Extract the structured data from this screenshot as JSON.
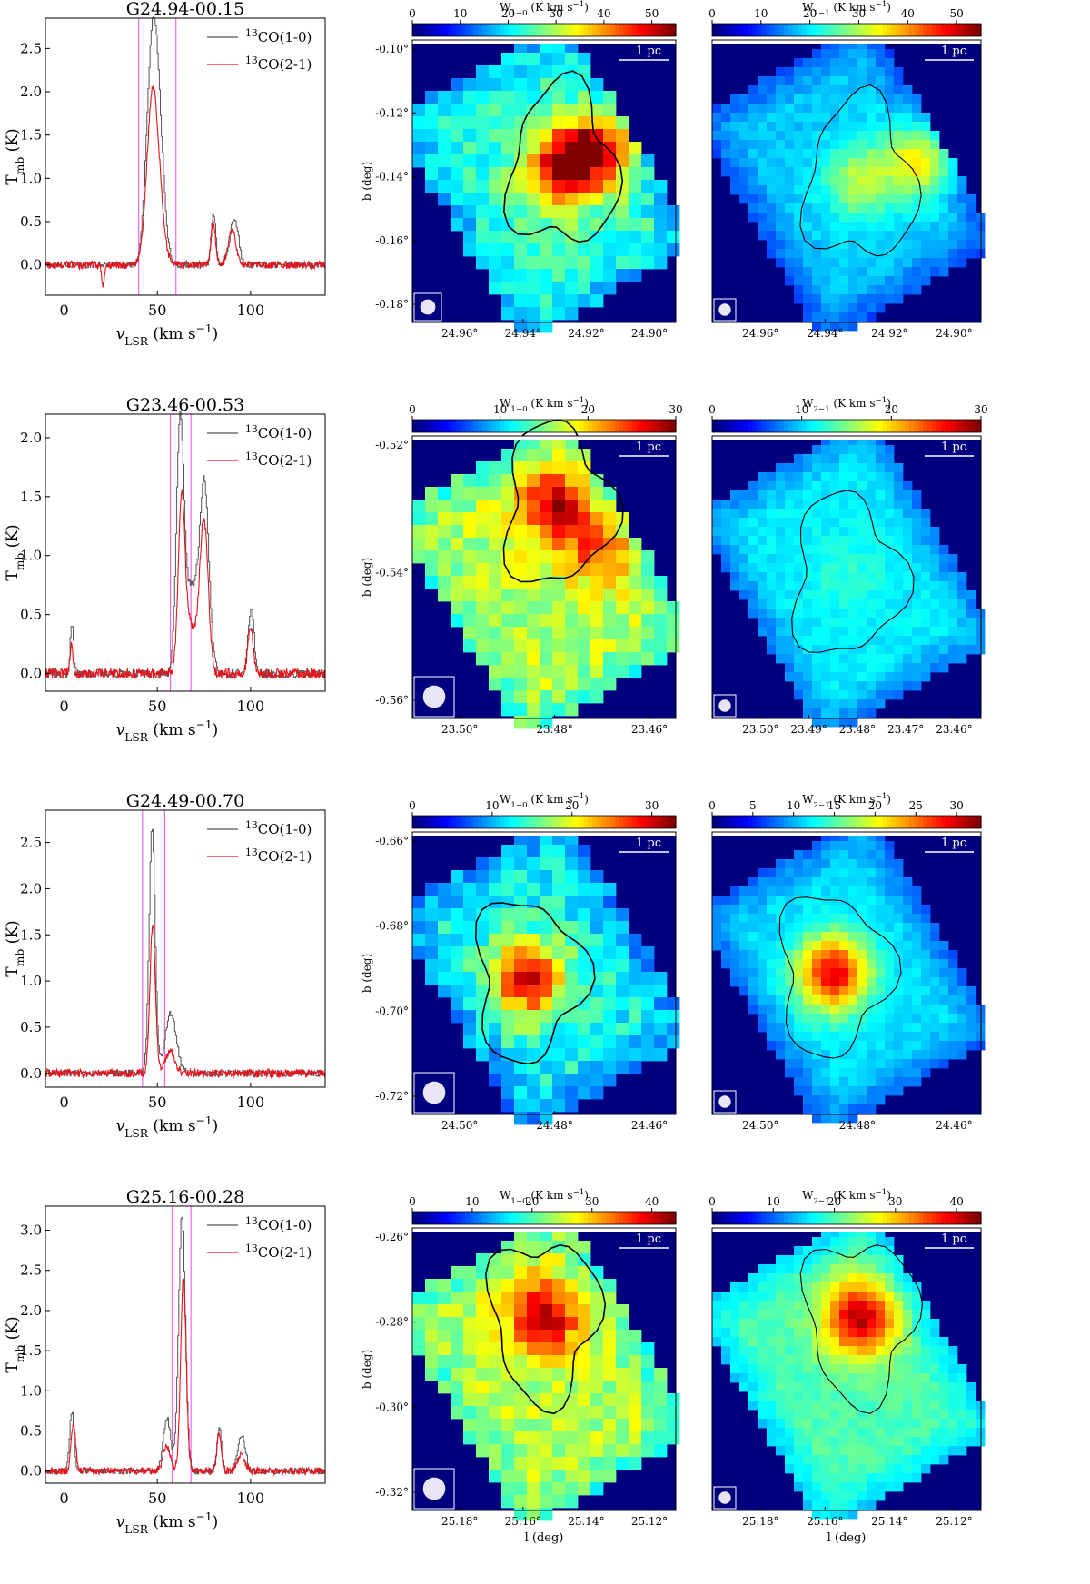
{
  "colors": {
    "gray_spectrum": "#555555",
    "red_spectrum": "#e8101a",
    "vline": "#ee66ee",
    "map_bg": "#00007f",
    "contour": "#000000"
  },
  "chart_data": [
    {
      "type": "line",
      "region": "G24.94-00.15",
      "title": "G24.94-00.15",
      "xlabel": "v_LSR (km s^-1)",
      "ylabel": "T_mb (K)",
      "xlim": [
        -10,
        140
      ],
      "ylim": [
        -0.35,
        2.85
      ],
      "xticks": [
        0,
        50,
        100
      ],
      "yticks": [
        0.0,
        0.5,
        1.0,
        1.5,
        2.0,
        2.5
      ],
      "vlines": [
        40,
        60
      ],
      "series": [
        {
          "name": "13CO(1-0)",
          "color": "gray",
          "peaks": [
            [
              47.5,
              2.75,
              3.2
            ],
            [
              52,
              0.55,
              2.5
            ],
            [
              80,
              0.6,
              1.2
            ],
            [
              91,
              0.55,
              2.2
            ]
          ]
        },
        {
          "name": "13CO(2-1)",
          "color": "red",
          "peaks": [
            [
              47.5,
              2.0,
              3.0
            ],
            [
              52,
              0.3,
              2.5
            ],
            [
              80,
              0.5,
              1.2
            ],
            [
              90,
              0.4,
              2.0
            ],
            [
              21,
              -0.25,
              0.7
            ]
          ]
        }
      ],
      "maps": [
        {
          "name": "W1-0 map",
          "cbar_label": "W1-0 (K km s^-1)",
          "cbar_ticks": [
            0,
            10,
            20,
            30,
            40,
            50
          ],
          "cbar_max": 55,
          "y_label": "b (deg)",
          "y_ticks": [
            "-0.10°",
            "-0.12°",
            "-0.14°",
            "-0.16°",
            "-0.18°"
          ],
          "x_ticks": [
            "24.96°",
            "24.94°",
            "24.92°",
            "24.90°"
          ],
          "x_label": "",
          "scale_label": "1 pc",
          "mean_level": 0.42,
          "peaks": [
            [
              0.57,
              0.45,
              0.95
            ],
            [
              0.72,
              0.38,
              0.9
            ]
          ]
        },
        {
          "name": "W2-1 map",
          "cbar_label": "W2-1 (K km s^-1)",
          "cbar_ticks": [
            0,
            10,
            20,
            30,
            40,
            50
          ],
          "cbar_max": 55,
          "y_label": "",
          "y_ticks": [],
          "x_ticks": [
            "24.96°",
            "24.94°",
            "24.92°",
            "24.90°"
          ],
          "x_label": "",
          "scale_label": "1 pc",
          "mean_level": 0.32,
          "peaks": [
            [
              0.55,
              0.5,
              0.55
            ],
            [
              0.78,
              0.42,
              0.65
            ]
          ]
        }
      ]
    },
    {
      "type": "line",
      "region": "G23.46-00.53",
      "title": "G23.46-00.53",
      "xlabel": "v_LSR (km s^-1)",
      "ylabel": "T_mb (K)",
      "xlim": [
        -10,
        140
      ],
      "ylim": [
        -0.15,
        2.2
      ],
      "xticks": [
        0,
        50,
        100
      ],
      "yticks": [
        0.0,
        0.5,
        1.0,
        1.5,
        2.0
      ],
      "vlines": [
        57,
        68
      ],
      "series": [
        {
          "name": "13CO(1-0)",
          "color": "gray",
          "peaks": [
            [
              62,
              2.05,
              2.0
            ],
            [
              75,
              1.55,
              2.5
            ],
            [
              68,
              0.7,
              3.5
            ],
            [
              100,
              0.55,
              1.6
            ],
            [
              4,
              0.45,
              0.8
            ]
          ]
        },
        {
          "name": "13CO(2-1)",
          "color": "red",
          "peaks": [
            [
              63,
              1.45,
              1.8
            ],
            [
              75,
              1.3,
              2.2
            ],
            [
              68,
              0.4,
              3.0
            ],
            [
              100,
              0.4,
              1.4
            ],
            [
              4,
              0.25,
              0.8
            ]
          ]
        }
      ],
      "maps": [
        {
          "name": "W1-0 map",
          "cbar_label": "W1-0 (K km s^-1)",
          "cbar_ticks": [
            0,
            10,
            20,
            30
          ],
          "cbar_max": 30,
          "y_label": "b (deg)",
          "y_ticks": [
            "-0.52°",
            "-0.54°",
            "-0.56°"
          ],
          "x_ticks": [
            "23.50°",
            "23.48°",
            "23.46°"
          ],
          "x_label": "",
          "scale_label": "1 pc",
          "mean_level": 0.55,
          "peaks": [
            [
              0.55,
              0.25,
              0.95
            ],
            [
              0.72,
              0.4,
              0.8
            ]
          ]
        },
        {
          "name": "W2-1 map",
          "cbar_label": "W2-1 (K km s^-1)",
          "cbar_ticks": [
            0,
            10,
            20,
            30
          ],
          "cbar_max": 30,
          "y_label": "",
          "y_ticks": [],
          "x_ticks": [
            "23.50°",
            "23.49°",
            "23.48°",
            "23.47°",
            "23.46°"
          ],
          "x_label": "",
          "scale_label": "1 pc",
          "mean_level": 0.36,
          "peaks": [
            [
              0.5,
              0.5,
              0.42
            ]
          ]
        }
      ]
    },
    {
      "type": "line",
      "region": "G24.49-00.70",
      "title": "G24.49-00.70",
      "xlabel": "v_LSR (km s^-1)",
      "ylabel": "T_mb (K)",
      "xlim": [
        -10,
        140
      ],
      "ylim": [
        -0.15,
        2.85
      ],
      "xticks": [
        0,
        50,
        100
      ],
      "yticks": [
        0.0,
        0.5,
        1.0,
        1.5,
        2.0,
        2.5
      ],
      "vlines": [
        42,
        54
      ],
      "series": [
        {
          "name": "13CO(1-0)",
          "color": "gray",
          "peaks": [
            [
              47,
              2.65,
              1.6
            ],
            [
              57,
              0.65,
              3.0
            ]
          ]
        },
        {
          "name": "13CO(2-1)",
          "color": "red",
          "peaks": [
            [
              47.5,
              1.6,
              1.5
            ],
            [
              57,
              0.25,
              2.5
            ]
          ]
        }
      ],
      "maps": [
        {
          "name": "W1-0 map",
          "cbar_label": "W1-0 (K km s^-1)",
          "cbar_ticks": [
            0,
            10,
            20,
            30
          ],
          "cbar_max": 33,
          "y_label": "b (deg)",
          "y_ticks": [
            "-0.66°",
            "-0.68°",
            "-0.70°",
            "-0.72°"
          ],
          "x_ticks": [
            "24.50°",
            "24.48°",
            "24.46°"
          ],
          "x_label": "",
          "scale_label": "1 pc",
          "mean_level": 0.38,
          "peaks": [
            [
              0.44,
              0.52,
              0.95
            ]
          ]
        },
        {
          "name": "W2-1 map",
          "cbar_label": "W2-1 (K km s^-1)",
          "cbar_ticks": [
            0,
            5,
            10,
            15,
            20,
            25,
            30
          ],
          "cbar_max": 33,
          "y_label": "",
          "y_ticks": [],
          "x_ticks": [
            "24.50°",
            "24.48°",
            "24.46°"
          ],
          "x_label": "",
          "scale_label": "1 pc",
          "mean_level": 0.34,
          "peaks": [
            [
              0.45,
              0.5,
              0.9
            ]
          ]
        }
      ]
    },
    {
      "type": "line",
      "region": "G25.16-00.28",
      "title": "G25.16-00.28",
      "xlabel": "v_LSR (km s^-1)",
      "ylabel": "T_mb (K)",
      "xlim": [
        -10,
        140
      ],
      "ylim": [
        -0.15,
        3.3
      ],
      "xticks": [
        0,
        50,
        100
      ],
      "yticks": [
        0.0,
        0.5,
        1.0,
        1.5,
        2.0,
        2.5,
        3.0
      ],
      "vlines": [
        58,
        68
      ],
      "series": [
        {
          "name": "13CO(1-0)",
          "color": "gray",
          "peaks": [
            [
              63,
              3.2,
              1.8
            ],
            [
              55,
              0.65,
              2.0
            ],
            [
              4,
              0.75,
              1.2
            ],
            [
              83,
              0.55,
              1.2
            ],
            [
              95,
              0.45,
              2.0
            ]
          ]
        },
        {
          "name": "13CO(2-1)",
          "color": "red",
          "peaks": [
            [
              64,
              2.4,
              1.5
            ],
            [
              55,
              0.3,
              2.0
            ],
            [
              5,
              0.6,
              1.2
            ],
            [
              83,
              0.45,
              1.2
            ],
            [
              95,
              0.2,
              2.0
            ]
          ]
        }
      ],
      "maps": [
        {
          "name": "W1-0 map",
          "cbar_label": "W1-0 (K km s^-1)",
          "cbar_ticks": [
            0,
            10,
            20,
            30,
            40
          ],
          "cbar_max": 44,
          "y_label": "b (deg)",
          "y_ticks": [
            "-0.26°",
            "-0.28°",
            "-0.30°",
            "-0.32°"
          ],
          "x_ticks": [
            "25.18°",
            "25.16°",
            "25.14°",
            "25.12°"
          ],
          "x_label": "l (deg)",
          "scale_label": "1 pc",
          "mean_level": 0.55,
          "peaks": [
            [
              0.5,
              0.32,
              0.95
            ]
          ]
        },
        {
          "name": "W2-1 map",
          "cbar_label": "W2-1 (K km s^-1)",
          "cbar_ticks": [
            0,
            10,
            20,
            30,
            40
          ],
          "cbar_max": 44,
          "y_label": "",
          "y_ticks": [],
          "x_ticks": [
            "25.18°",
            "25.16°",
            "25.14°",
            "25.12°"
          ],
          "x_label": "l (deg)",
          "scale_label": "1 pc",
          "mean_level": 0.45,
          "peaks": [
            [
              0.55,
              0.32,
              0.95
            ]
          ]
        }
      ]
    }
  ]
}
